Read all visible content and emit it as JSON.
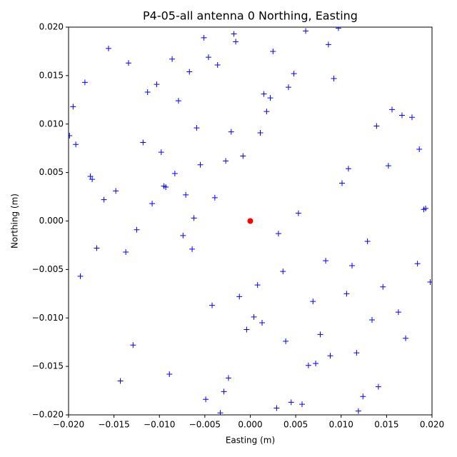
{
  "chart_data": {
    "type": "scatter",
    "title": "P4-05-all antenna 0 Northing, Easting",
    "xlabel": "Easting (m)",
    "ylabel": "Northing (m)",
    "xlim": [
      -0.02,
      0.02
    ],
    "ylim": [
      -0.02,
      0.02
    ],
    "xticks": [
      {
        "value": -0.02,
        "label": "−0.020"
      },
      {
        "value": -0.015,
        "label": "−0.015"
      },
      {
        "value": -0.01,
        "label": "−0.010"
      },
      {
        "value": -0.005,
        "label": "−0.005"
      },
      {
        "value": 0,
        "label": "0.000"
      },
      {
        "value": 0.005,
        "label": "0.005"
      },
      {
        "value": 0.01,
        "label": "0.010"
      },
      {
        "value": 0.015,
        "label": "0.015"
      },
      {
        "value": 0.02,
        "label": "0.020"
      }
    ],
    "yticks": [
      {
        "value": -0.02,
        "label": "−0.020"
      },
      {
        "value": -0.015,
        "label": "−0.015"
      },
      {
        "value": -0.01,
        "label": "−0.010"
      },
      {
        "value": -0.005,
        "label": "−0.005"
      },
      {
        "value": 0,
        "label": "0.000"
      },
      {
        "value": 0.005,
        "label": "0.005"
      },
      {
        "value": 0.01,
        "label": "0.010"
      },
      {
        "value": 0.015,
        "label": "0.015"
      },
      {
        "value": 0.02,
        "label": "0.020"
      }
    ],
    "series": [
      {
        "color": "#0000ff",
        "marker": "+",
        "x": [
          -0.0182,
          0.0171,
          -0.0093,
          0.0045,
          -0.0021,
          0.0112,
          -0.0156,
          0.0193,
          0.0008,
          -0.0067,
          0.0134,
          -0.0118,
          0.0029,
          -0.0039,
          0.0088,
          -0.0195,
          0.0152,
          -0.0074,
          0.0061,
          -0.0012,
          0.0101,
          -0.0143,
          0.0178,
          -0.0051,
          0.0036,
          -0.0098,
          0.0124,
          -0.0169,
          0.0015,
          -0.0027,
          0.0072,
          -0.0108,
          0.0163,
          -0.0134,
          0.0053,
          -0.0004,
          0.0097,
          -0.0187,
          0.0141,
          -0.0059,
          0.0022,
          -0.0083,
          0.0117,
          -0.0125,
          0.0186,
          -0.0033,
          0.0048,
          -0.0148,
          0.0069,
          -0.0016,
          0.0083,
          -0.0046,
          0.0011,
          -0.0089,
          0.0129,
          -0.0174,
          0.0156,
          -0.0062,
          0.0039,
          -0.0008,
          0.0057,
          -0.0113,
          0.0198,
          -0.0199,
          0.0092,
          -0.0029,
          0.0004,
          -0.0071,
          0.0108,
          -0.0137,
          0.0167,
          -0.0042,
          0.0025,
          -0.0103,
          0.0077,
          -0.0161,
          0.0146,
          -0.0018,
          0.0064,
          -0.0055,
          0.0031,
          -0.0079,
          0.0119,
          -0.0192,
          0.0184,
          -0.0036,
          0.0013,
          -0.0095,
          0.0086,
          -0.0129,
          0.0139,
          -0.0064,
          0.0042,
          -0.0024,
          0.0106,
          -0.0176,
          0.0191,
          -0.0049,
          0.0018,
          -0.0086
        ],
        "y": [
          0.0143,
          -0.0121,
          0.0035,
          -0.0187,
          0.0092,
          -0.0046,
          0.0178,
          0.0013,
          -0.0066,
          0.0154,
          -0.0102,
          0.0081,
          -0.0193,
          0.0024,
          -0.0139,
          0.0118,
          0.0057,
          -0.0015,
          0.0196,
          -0.0078,
          0.0039,
          -0.0165,
          0.0107,
          0.0189,
          -0.0052,
          0.0071,
          -0.0181,
          -0.0028,
          0.0131,
          0.0062,
          -0.0147,
          0.0018,
          -0.0094,
          0.0163,
          0.0008,
          -0.0112,
          0.0199,
          -0.0057,
          -0.0171,
          0.0096,
          0.0127,
          0.0049,
          -0.0136,
          -0.0009,
          0.0074,
          -0.0198,
          0.0152,
          0.0031,
          -0.0083,
          0.0185,
          -0.0041,
          0.0169,
          0.0091,
          -0.0158,
          -0.0021,
          0.0043,
          0.0115,
          0.0003,
          -0.0124,
          0.0067,
          -0.0189,
          0.0133,
          -0.0063,
          0.0088,
          0.0147,
          -0.0176,
          -0.0099,
          0.0027,
          0.0054,
          -0.0032,
          0.0109,
          -0.0087,
          0.0175,
          0.0141,
          -0.0117,
          0.0022,
          -0.0068,
          0.0193,
          -0.0149,
          0.0058,
          -0.0013,
          0.0124,
          -0.0196,
          0.0079,
          -0.0044,
          0.0161,
          -0.0105,
          0.0036,
          0.0182,
          -0.0128,
          0.0098,
          -0.0029,
          0.0138,
          -0.0162,
          -0.0075,
          0.0046,
          0.0012,
          -0.0184,
          0.0113,
          0.0167
        ]
      },
      {
        "color": "#ff0000",
        "marker": "o",
        "x": [
          0
        ],
        "y": [
          0
        ]
      }
    ]
  }
}
